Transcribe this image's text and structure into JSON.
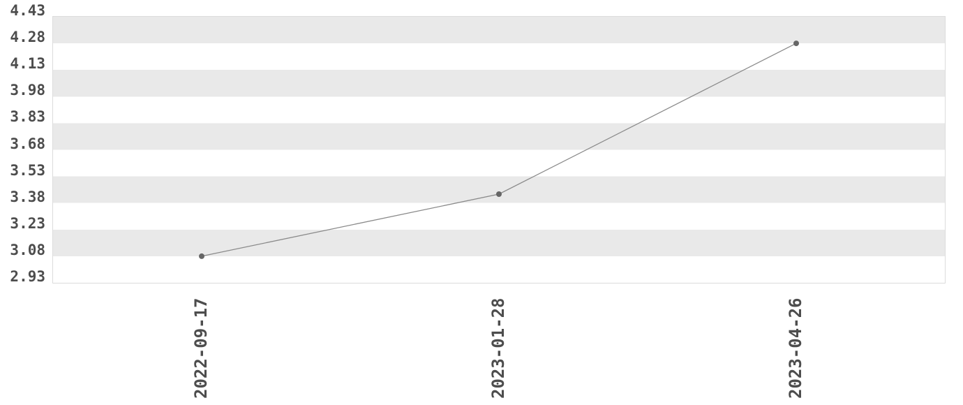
{
  "chart_data": {
    "type": "line",
    "x": [
      "2022-09-17",
      "2023-01-28",
      "2023-04-26"
    ],
    "values": [
      3.08,
      3.43,
      4.28
    ],
    "title": "",
    "xlabel": "",
    "ylabel": "",
    "ylim": [
      2.93,
      4.43
    ],
    "ytick_labels": [
      "4.43",
      "4.28",
      "4.13",
      "3.98",
      "3.83",
      "3.68",
      "3.53",
      "3.38",
      "3.23",
      "3.08",
      "2.93"
    ],
    "grid": "alternating-horizontal-bands",
    "legend_position": "none",
    "colors": {
      "band": "#e9e9e9",
      "plot_border": "#dcdcdc",
      "line": "#8a8a8a",
      "point": "#666666",
      "tick_text": "#4d4d4d",
      "background": "#ffffff"
    }
  }
}
